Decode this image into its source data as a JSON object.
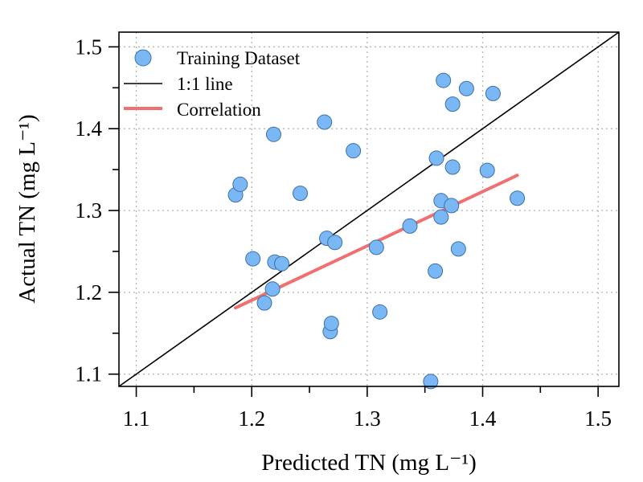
{
  "chart_data": {
    "type": "scatter",
    "title": "",
    "xlabel": "Predicted TN (mg L⁻¹)",
    "ylabel": "Actual TN (mg L⁻¹)",
    "xlim": [
      1.085,
      1.518
    ],
    "ylim": [
      1.085,
      1.518
    ],
    "xticks": [
      1.1,
      1.2,
      1.3,
      1.4,
      1.5
    ],
    "yticks": [
      1.1,
      1.2,
      1.3,
      1.4,
      1.5
    ],
    "xtick_labels": [
      "1.1",
      "1.2",
      "1.3",
      "1.4",
      "1.5"
    ],
    "ytick_labels": [
      "1.1",
      "1.2",
      "1.3",
      "1.4",
      "1.5"
    ],
    "grid": true,
    "legend_position": "top-left",
    "legend": {
      "points": "Training Dataset",
      "identity": "1:1 line",
      "fit": "Correlation"
    },
    "colors": {
      "points_fill": "#7ab8f5",
      "points_stroke": "#3d6fa8",
      "identity_line": "#000000",
      "fit_line": "#f07070",
      "grid": "#b3b3b3"
    },
    "series": [
      {
        "name": "Training Dataset",
        "type": "scatter",
        "points": [
          [
            1.186,
            1.319
          ],
          [
            1.19,
            1.332
          ],
          [
            1.201,
            1.241
          ],
          [
            1.211,
            1.187
          ],
          [
            1.218,
            1.204
          ],
          [
            1.219,
            1.393
          ],
          [
            1.22,
            1.237
          ],
          [
            1.226,
            1.235
          ],
          [
            1.242,
            1.321
          ],
          [
            1.263,
            1.408
          ],
          [
            1.265,
            1.266
          ],
          [
            1.268,
            1.152
          ],
          [
            1.269,
            1.162
          ],
          [
            1.272,
            1.261
          ],
          [
            1.288,
            1.373
          ],
          [
            1.308,
            1.255
          ],
          [
            1.311,
            1.176
          ],
          [
            1.337,
            1.281
          ],
          [
            1.355,
            1.091
          ],
          [
            1.359,
            1.226
          ],
          [
            1.36,
            1.364
          ],
          [
            1.364,
            1.312
          ],
          [
            1.364,
            1.292
          ],
          [
            1.366,
            1.459
          ],
          [
            1.373,
            1.306
          ],
          [
            1.374,
            1.353
          ],
          [
            1.374,
            1.43
          ],
          [
            1.379,
            1.253
          ],
          [
            1.386,
            1.449
          ],
          [
            1.404,
            1.349
          ],
          [
            1.409,
            1.443
          ],
          [
            1.43,
            1.315
          ]
        ]
      },
      {
        "name": "1:1 line",
        "type": "line",
        "points": [
          [
            1.085,
            1.085
          ],
          [
            1.518,
            1.518
          ]
        ]
      },
      {
        "name": "Correlation",
        "type": "line",
        "points": [
          [
            1.186,
            1.181
          ],
          [
            1.43,
            1.343
          ]
        ]
      }
    ]
  }
}
